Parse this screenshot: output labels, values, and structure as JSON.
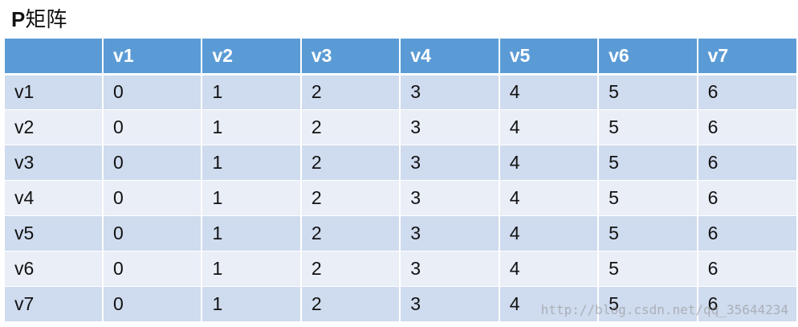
{
  "title": {
    "letter": "P",
    "text": "矩阵"
  },
  "table": {
    "corner": "",
    "columns": [
      "v1",
      "v2",
      "v3",
      "v4",
      "v5",
      "v6",
      "v7"
    ],
    "rows": [
      {
        "label": "v1",
        "cells": [
          "0",
          "1",
          "2",
          "3",
          "4",
          "5",
          "6"
        ]
      },
      {
        "label": "v2",
        "cells": [
          "0",
          "1",
          "2",
          "3",
          "4",
          "5",
          "6"
        ]
      },
      {
        "label": "v3",
        "cells": [
          "0",
          "1",
          "2",
          "3",
          "4",
          "5",
          "6"
        ]
      },
      {
        "label": "v4",
        "cells": [
          "0",
          "1",
          "2",
          "3",
          "4",
          "5",
          "6"
        ]
      },
      {
        "label": "v5",
        "cells": [
          "0",
          "1",
          "2",
          "3",
          "4",
          "5",
          "6"
        ]
      },
      {
        "label": "v6",
        "cells": [
          "0",
          "1",
          "2",
          "3",
          "4",
          "5",
          "6"
        ]
      },
      {
        "label": "v7",
        "cells": [
          "0",
          "1",
          "2",
          "3",
          "4",
          "5",
          "6"
        ]
      }
    ]
  },
  "watermark": "http://blog.csdn.net/qq_35644234",
  "colors": {
    "header": "#5b9bd5",
    "row_odd": "#cfdbee",
    "row_even": "#e9eef7"
  }
}
